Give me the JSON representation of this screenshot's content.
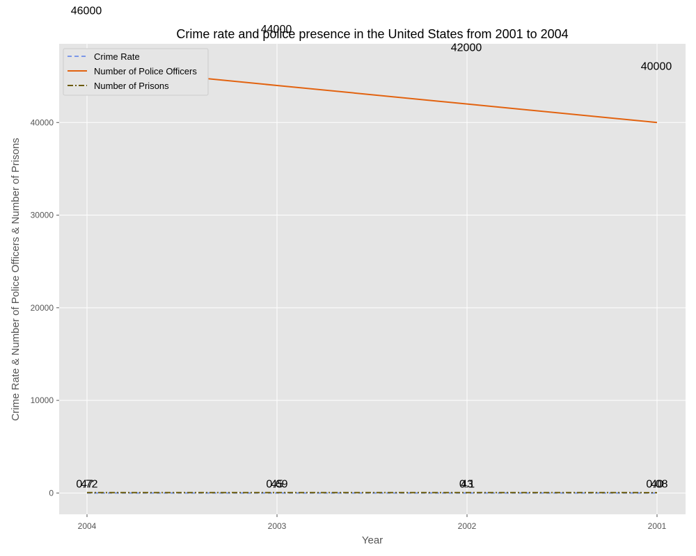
{
  "chart_data": {
    "type": "line",
    "title": "Crime rate and police presence in the United States from 2001 to 2004",
    "xlabel": "Year",
    "ylabel": "Crime Rate & Number of Police Officers & Number of Prisons",
    "categories": [
      "2004",
      "2003",
      "2002",
      "2001"
    ],
    "ylim": [
      -2300,
      48500
    ],
    "yticks": [
      0,
      10000,
      20000,
      30000,
      40000
    ],
    "grid": true,
    "legend": "top-left",
    "series": [
      {
        "name": "Crime Rate",
        "values": [
          0.72,
          0.69,
          0.1,
          0.08
        ],
        "labels": [
          "0.72",
          "0.69",
          "0.1",
          "0.08"
        ],
        "color": "#7b97e8",
        "dash": "6,4"
      },
      {
        "name": "Number of Police Officers",
        "values": [
          46000,
          44000,
          42000,
          40000
        ],
        "labels": [
          "46000",
          "44000",
          "42000",
          "40000"
        ],
        "color": "#e2620f",
        "dash": ""
      },
      {
        "name": "Number of Prisons",
        "values": [
          47,
          45,
          43,
          40
        ],
        "labels": [
          "47",
          "45",
          "43",
          "40"
        ],
        "color": "#6b5a07",
        "dash": "8,3,2,3"
      }
    ]
  }
}
